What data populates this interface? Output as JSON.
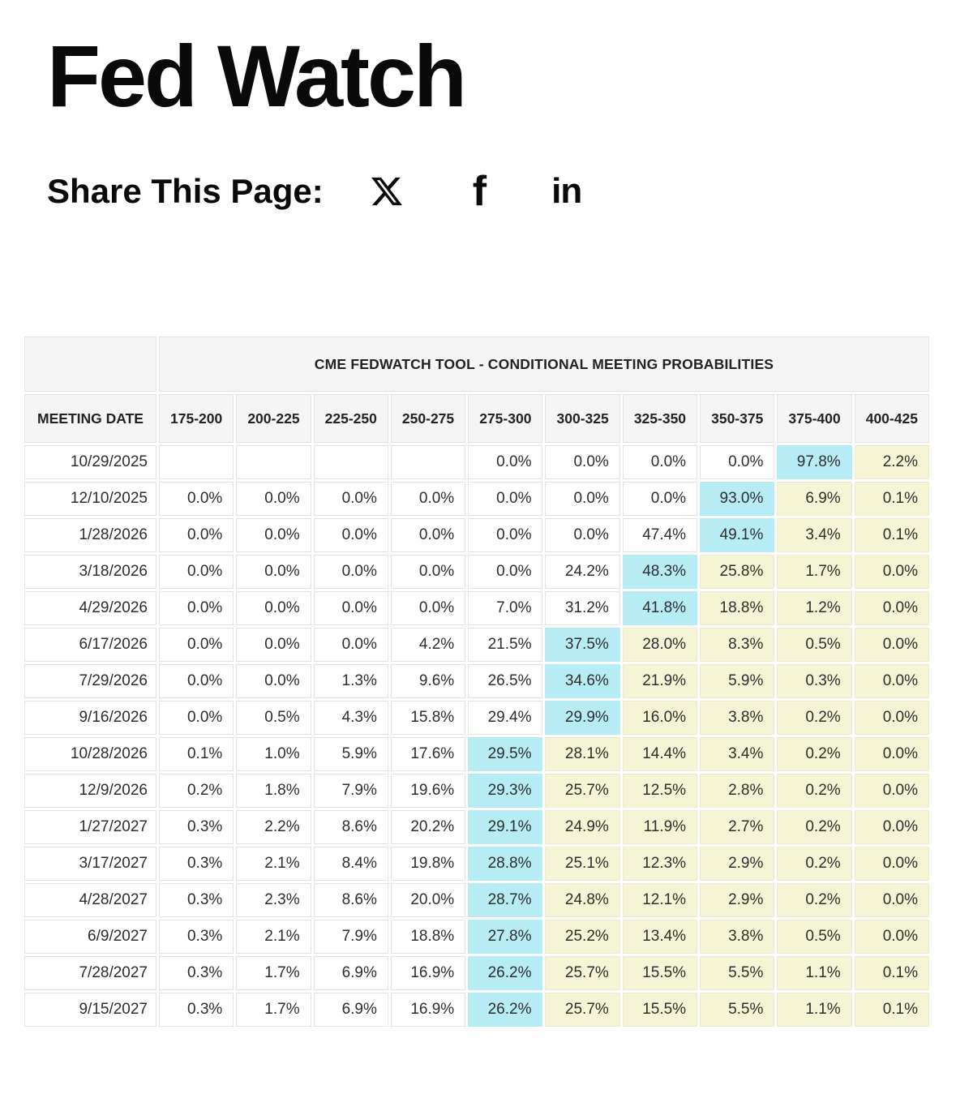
{
  "header": {
    "title": "Fed Watch"
  },
  "share": {
    "label": "Share This Page:",
    "icons": [
      {
        "name": "x-twitter-icon"
      },
      {
        "name": "facebook-icon",
        "glyph": "f"
      },
      {
        "name": "linkedin-icon",
        "glyph": "in"
      }
    ]
  },
  "table": {
    "title": "CME FEDWATCH TOOL - CONDITIONAL MEETING PROBABILITIES",
    "meeting_date_header": "MEETING DATE",
    "rate_headers": [
      "175-200",
      "200-225",
      "225-250",
      "250-275",
      "275-300",
      "300-325",
      "325-350",
      "350-375",
      "375-400",
      "400-425"
    ],
    "highlight_colors": {
      "max_probability": "#b7ecf5",
      "right_of_max": "#f5f5d6"
    },
    "rows": [
      {
        "date": "10/29/2025",
        "values": [
          "",
          "",
          "",
          "",
          "0.0%",
          "0.0%",
          "0.0%",
          "0.0%",
          "97.8%",
          "2.2%"
        ],
        "max_col": 8
      },
      {
        "date": "12/10/2025",
        "values": [
          "0.0%",
          "0.0%",
          "0.0%",
          "0.0%",
          "0.0%",
          "0.0%",
          "0.0%",
          "93.0%",
          "6.9%",
          "0.1%"
        ],
        "max_col": 7
      },
      {
        "date": "1/28/2026",
        "values": [
          "0.0%",
          "0.0%",
          "0.0%",
          "0.0%",
          "0.0%",
          "0.0%",
          "47.4%",
          "49.1%",
          "3.4%",
          "0.1%"
        ],
        "max_col": 7
      },
      {
        "date": "3/18/2026",
        "values": [
          "0.0%",
          "0.0%",
          "0.0%",
          "0.0%",
          "0.0%",
          "24.2%",
          "48.3%",
          "25.8%",
          "1.7%",
          "0.0%"
        ],
        "max_col": 6
      },
      {
        "date": "4/29/2026",
        "values": [
          "0.0%",
          "0.0%",
          "0.0%",
          "0.0%",
          "7.0%",
          "31.2%",
          "41.8%",
          "18.8%",
          "1.2%",
          "0.0%"
        ],
        "max_col": 6
      },
      {
        "date": "6/17/2026",
        "values": [
          "0.0%",
          "0.0%",
          "0.0%",
          "4.2%",
          "21.5%",
          "37.5%",
          "28.0%",
          "8.3%",
          "0.5%",
          "0.0%"
        ],
        "max_col": 5
      },
      {
        "date": "7/29/2026",
        "values": [
          "0.0%",
          "0.0%",
          "1.3%",
          "9.6%",
          "26.5%",
          "34.6%",
          "21.9%",
          "5.9%",
          "0.3%",
          "0.0%"
        ],
        "max_col": 5
      },
      {
        "date": "9/16/2026",
        "values": [
          "0.0%",
          "0.5%",
          "4.3%",
          "15.8%",
          "29.4%",
          "29.9%",
          "16.0%",
          "3.8%",
          "0.2%",
          "0.0%"
        ],
        "max_col": 5
      },
      {
        "date": "10/28/2026",
        "values": [
          "0.1%",
          "1.0%",
          "5.9%",
          "17.6%",
          "29.5%",
          "28.1%",
          "14.4%",
          "3.4%",
          "0.2%",
          "0.0%"
        ],
        "max_col": 4
      },
      {
        "date": "12/9/2026",
        "values": [
          "0.2%",
          "1.8%",
          "7.9%",
          "19.6%",
          "29.3%",
          "25.7%",
          "12.5%",
          "2.8%",
          "0.2%",
          "0.0%"
        ],
        "max_col": 4
      },
      {
        "date": "1/27/2027",
        "values": [
          "0.3%",
          "2.2%",
          "8.6%",
          "20.2%",
          "29.1%",
          "24.9%",
          "11.9%",
          "2.7%",
          "0.2%",
          "0.0%"
        ],
        "max_col": 4
      },
      {
        "date": "3/17/2027",
        "values": [
          "0.3%",
          "2.1%",
          "8.4%",
          "19.8%",
          "28.8%",
          "25.1%",
          "12.3%",
          "2.9%",
          "0.2%",
          "0.0%"
        ],
        "max_col": 4
      },
      {
        "date": "4/28/2027",
        "values": [
          "0.3%",
          "2.3%",
          "8.6%",
          "20.0%",
          "28.7%",
          "24.8%",
          "12.1%",
          "2.9%",
          "0.2%",
          "0.0%"
        ],
        "max_col": 4
      },
      {
        "date": "6/9/2027",
        "values": [
          "0.3%",
          "2.1%",
          "7.9%",
          "18.8%",
          "27.8%",
          "25.2%",
          "13.4%",
          "3.8%",
          "0.5%",
          "0.0%"
        ],
        "max_col": 4
      },
      {
        "date": "7/28/2027",
        "values": [
          "0.3%",
          "1.7%",
          "6.9%",
          "16.9%",
          "26.2%",
          "25.7%",
          "15.5%",
          "5.5%",
          "1.1%",
          "0.1%"
        ],
        "max_col": 4
      },
      {
        "date": "9/15/2027",
        "values": [
          "0.3%",
          "1.7%",
          "6.9%",
          "16.9%",
          "26.2%",
          "25.7%",
          "15.5%",
          "5.5%",
          "1.1%",
          "0.1%"
        ],
        "max_col": 4
      }
    ]
  }
}
